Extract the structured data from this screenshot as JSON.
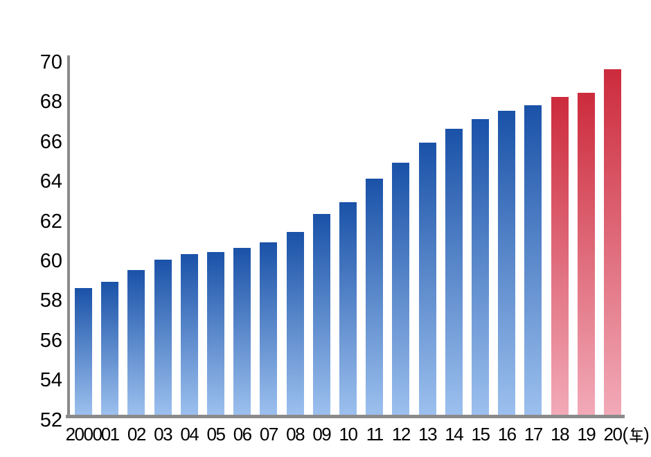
{
  "chart_data": {
    "type": "bar",
    "title": "",
    "categories": [
      "2000",
      "01",
      "02",
      "03",
      "04",
      "05",
      "06",
      "07",
      "08",
      "09",
      "10",
      "11",
      "12",
      "13",
      "14",
      "15",
      "16",
      "17",
      "18",
      "19",
      "20"
    ],
    "values": [
      58.6,
      58.9,
      59.5,
      60.0,
      60.3,
      60.4,
      60.6,
      60.9,
      61.4,
      62.3,
      62.9,
      64.1,
      64.9,
      65.9,
      66.6,
      67.1,
      67.5,
      67.8,
      68.2,
      68.4,
      69.6
    ],
    "forecast_start_index": 18,
    "x_axis_unit": "(年)",
    "ylim": [
      52,
      70
    ],
    "ytick_step": 2,
    "ytick_labels": [
      "52",
      "54",
      "56",
      "58",
      "60",
      "62",
      "64",
      "66",
      "68",
      "70"
    ],
    "grid": false,
    "legend": null,
    "colors": {
      "bar_actual_top": "#1a52a8",
      "bar_actual_bottom": "#9cc0ee",
      "bar_forecast_top": "#cc2b3c",
      "bar_forecast_bottom": "#f2aab8",
      "axis": "#8a8a8a",
      "text": "#000000"
    }
  }
}
